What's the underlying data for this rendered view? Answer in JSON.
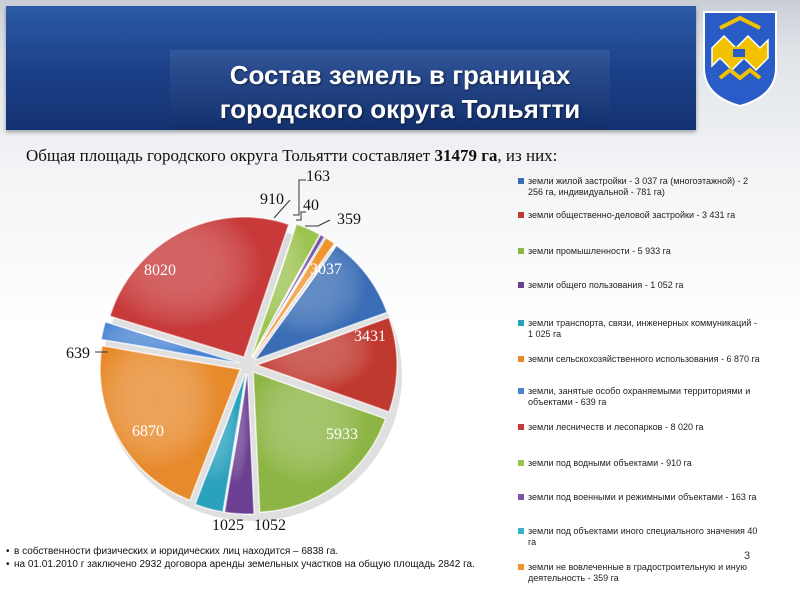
{
  "title": {
    "line1": "Состав земель в границах",
    "line2": "городского округа Тольятти"
  },
  "subtitle": {
    "prefix": "Общая площадь городского округа Тольятти составляет ",
    "value": "31479 га",
    "suffix": ", из них:"
  },
  "page_number": "3",
  "notes": [
    "в собственности физических и юридических лиц находится – 6838 га.",
    "на 01.01.2010 г заключено 2932 договора аренды земельных участков на общую площадь 2842 га."
  ],
  "colors": {
    "title_bg": "#1b3f86",
    "logo_bg": "#2a5cc8",
    "logo_accent": "#f2c100"
  },
  "chart_data": {
    "type": "pie",
    "title": "",
    "legend_position": "right",
    "slices": [
      {
        "label": "3037",
        "value": 3037,
        "color": "#3a6db5",
        "legend": "земли жилой застройки - 3 037 га (многоэтажной) - 2 256 га, индивидуальной - 781 га)"
      },
      {
        "label": "3431",
        "value": 3431,
        "color": "#c0392f",
        "legend": "земли общественно-деловой застройки - 3 431 га"
      },
      {
        "label": "5933",
        "value": 5933,
        "color": "#8db545",
        "legend": "земли промышленности - 5 933 га"
      },
      {
        "label": "1052",
        "value": 1052,
        "color": "#6b3f91",
        "legend": "земли общего пользования - 1 052 га"
      },
      {
        "label": "1025",
        "value": 1025,
        "color": "#2aa1bd",
        "legend": "земли транспорта, связи, инженерных коммуникаций - 1 025 га"
      },
      {
        "label": "6870",
        "value": 6870,
        "color": "#e78a2c",
        "legend": "земли сельскохозяйственного использования - 6 870 га"
      },
      {
        "label": "639",
        "value": 639,
        "color": "#4a84d3",
        "legend": "земли, занятые особо охраняемыми территориями и объектами - 639 га"
      },
      {
        "label": "8020",
        "value": 8020,
        "color": "#c83a3a",
        "legend": "земли лесничеств и лесопарков - 8 020 га"
      },
      {
        "label": "910",
        "value": 910,
        "color": "#9cc24f",
        "legend": "земли под водными объектами - 910 га"
      },
      {
        "label": "163",
        "value": 163,
        "color": "#7a54a6",
        "legend": "земли под военными и режимными объектами - 163 га"
      },
      {
        "label": "40",
        "value": 40,
        "color": "#39b0cc",
        "legend": "земли под объектами иного специального значения 40 га"
      },
      {
        "label": "359",
        "value": 359,
        "color": "#f0952e",
        "legend": "земли не вовлеченные в градостроительную и иную деятельность - 359 га"
      }
    ]
  }
}
